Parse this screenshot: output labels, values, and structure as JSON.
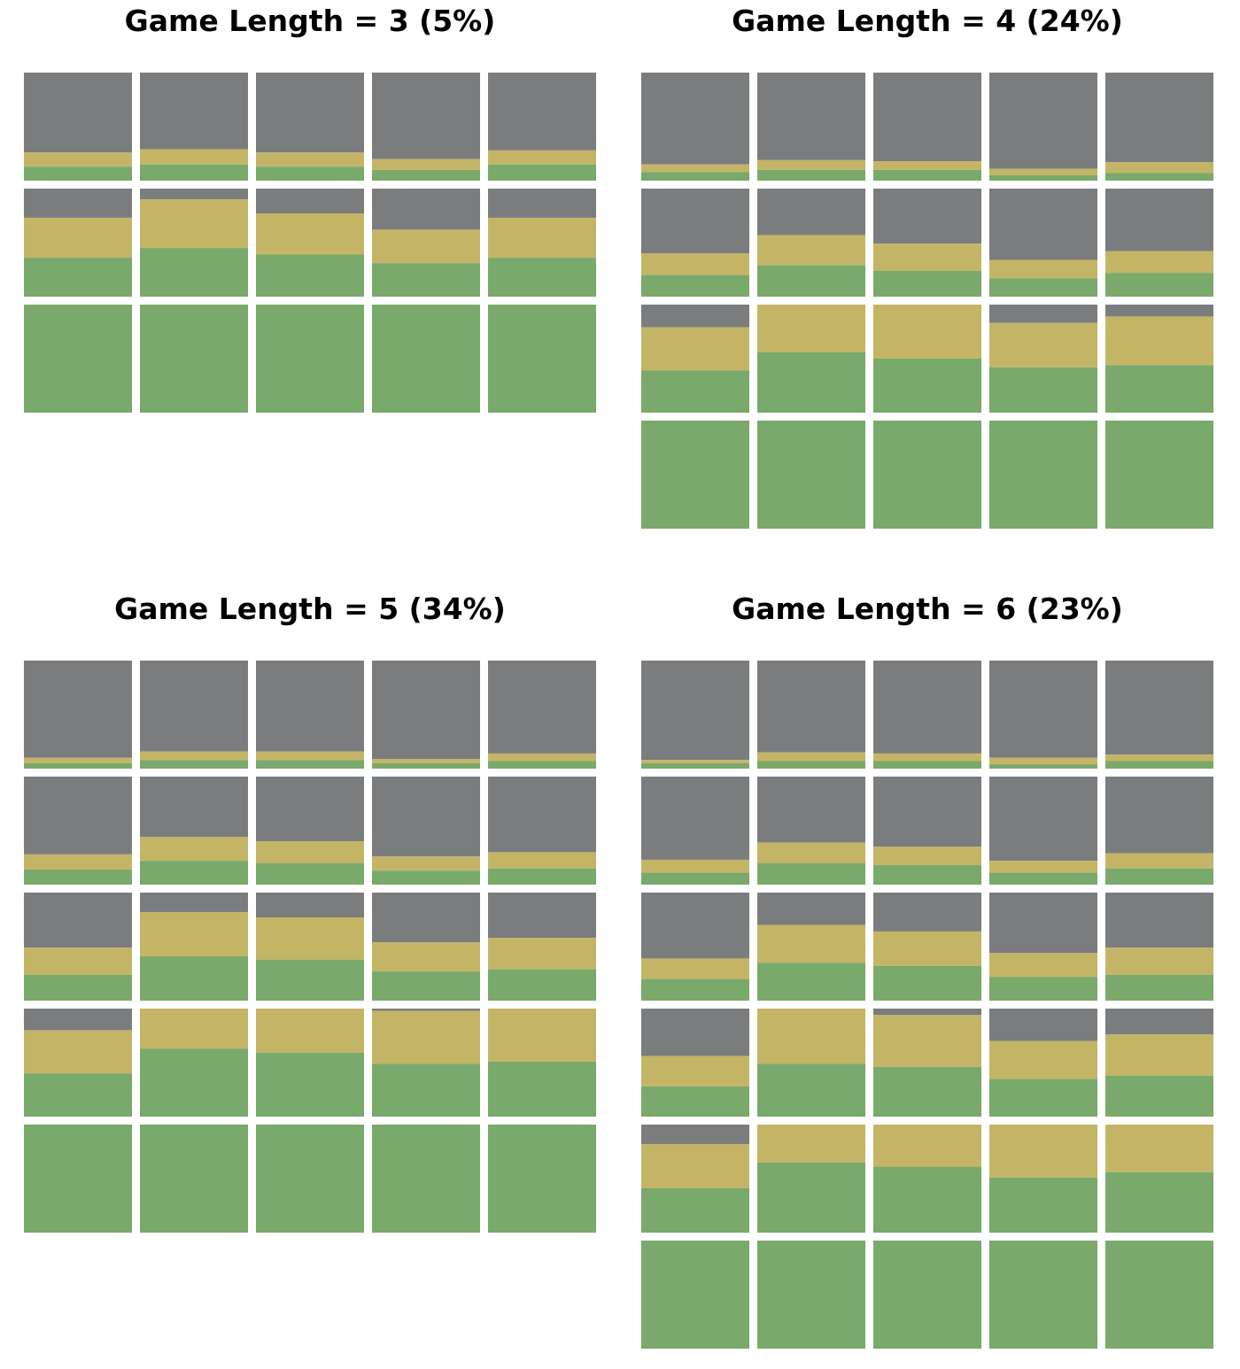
{
  "colors": {
    "gray": "#7b7c7e",
    "yellow": "#c4b566",
    "green": "#79a96b",
    "background": "#ffffff"
  },
  "chart_data": [
    {
      "type": "stacked-bar-grid",
      "title": "Game Length = 3 (5%)",
      "columns": 5,
      "series": [
        "green",
        "yellow",
        "gray"
      ],
      "rows": [
        [
          [
            0.13,
            0.13
          ],
          [
            0.15,
            0.14
          ],
          [
            0.13,
            0.13
          ],
          [
            0.1,
            0.1
          ],
          [
            0.15,
            0.13
          ]
        ],
        [
          [
            0.36,
            0.37
          ],
          [
            0.45,
            0.45
          ],
          [
            0.39,
            0.38
          ],
          [
            0.31,
            0.31
          ],
          [
            0.36,
            0.37
          ]
        ],
        [
          [
            1.0,
            0.0
          ],
          [
            1.0,
            0.0
          ],
          [
            1.0,
            0.0
          ],
          [
            1.0,
            0.0
          ],
          [
            1.0,
            0.0
          ]
        ]
      ]
    },
    {
      "type": "stacked-bar-grid",
      "title": "Game Length = 4 (24%)",
      "columns": 5,
      "series": [
        "green",
        "yellow",
        "gray"
      ],
      "rows": [
        [
          [
            0.08,
            0.07
          ],
          [
            0.1,
            0.09
          ],
          [
            0.1,
            0.08
          ],
          [
            0.05,
            0.06
          ],
          [
            0.07,
            0.1
          ]
        ],
        [
          [
            0.2,
            0.2
          ],
          [
            0.29,
            0.28
          ],
          [
            0.24,
            0.25
          ],
          [
            0.17,
            0.17
          ],
          [
            0.22,
            0.2
          ]
        ],
        [
          [
            0.39,
            0.4
          ],
          [
            0.56,
            0.44
          ],
          [
            0.5,
            0.5
          ],
          [
            0.42,
            0.41
          ],
          [
            0.44,
            0.45
          ]
        ],
        [
          [
            1.0,
            0.0
          ],
          [
            1.0,
            0.0
          ],
          [
            1.0,
            0.0
          ],
          [
            1.0,
            0.0
          ],
          [
            1.0,
            0.0
          ]
        ]
      ]
    },
    {
      "type": "stacked-bar-grid",
      "title": "Game Length = 5 (34%)",
      "columns": 5,
      "series": [
        "green",
        "yellow",
        "gray"
      ],
      "rows": [
        [
          [
            0.05,
            0.05
          ],
          [
            0.08,
            0.08
          ],
          [
            0.08,
            0.08
          ],
          [
            0.05,
            0.04
          ],
          [
            0.07,
            0.07
          ]
        ],
        [
          [
            0.14,
            0.14
          ],
          [
            0.22,
            0.22
          ],
          [
            0.2,
            0.2
          ],
          [
            0.13,
            0.13
          ],
          [
            0.15,
            0.15
          ]
        ],
        [
          [
            0.24,
            0.25
          ],
          [
            0.41,
            0.41
          ],
          [
            0.38,
            0.39
          ],
          [
            0.27,
            0.27
          ],
          [
            0.29,
            0.29
          ]
        ],
        [
          [
            0.4,
            0.4
          ],
          [
            0.63,
            0.37
          ],
          [
            0.59,
            0.41
          ],
          [
            0.49,
            0.49
          ],
          [
            0.51,
            0.49
          ]
        ],
        [
          [
            1.0,
            0.0
          ],
          [
            1.0,
            0.0
          ],
          [
            1.0,
            0.0
          ],
          [
            1.0,
            0.0
          ],
          [
            1.0,
            0.0
          ]
        ]
      ]
    },
    {
      "type": "stacked-bar-grid",
      "title": "Game Length = 6 (23%)",
      "columns": 5,
      "series": [
        "green",
        "yellow",
        "gray"
      ],
      "rows": [
        [
          [
            0.05,
            0.03
          ],
          [
            0.07,
            0.08
          ],
          [
            0.07,
            0.07
          ],
          [
            0.04,
            0.06
          ],
          [
            0.07,
            0.06
          ]
        ],
        [
          [
            0.11,
            0.12
          ],
          [
            0.2,
            0.19
          ],
          [
            0.18,
            0.17
          ],
          [
            0.11,
            0.11
          ],
          [
            0.15,
            0.14
          ]
        ],
        [
          [
            0.2,
            0.19
          ],
          [
            0.35,
            0.35
          ],
          [
            0.32,
            0.32
          ],
          [
            0.22,
            0.22
          ],
          [
            0.24,
            0.25
          ]
        ],
        [
          [
            0.28,
            0.28
          ],
          [
            0.49,
            0.51
          ],
          [
            0.46,
            0.48
          ],
          [
            0.35,
            0.35
          ],
          [
            0.38,
            0.38
          ]
        ],
        [
          [
            0.41,
            0.41
          ],
          [
            0.65,
            0.35
          ],
          [
            0.61,
            0.39
          ],
          [
            0.51,
            0.49
          ],
          [
            0.56,
            0.44
          ]
        ],
        [
          [
            1.0,
            0.0
          ],
          [
            1.0,
            0.0
          ],
          [
            1.0,
            0.0
          ],
          [
            1.0,
            0.0
          ],
          [
            1.0,
            0.0
          ]
        ]
      ]
    }
  ]
}
